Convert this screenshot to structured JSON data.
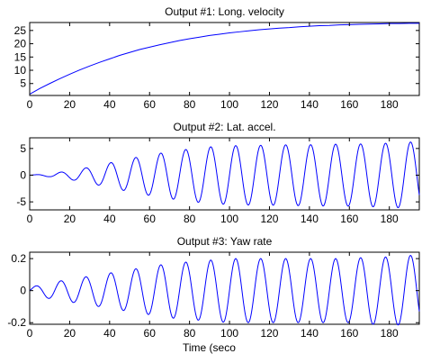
{
  "figure": {
    "xlabel": "Time (seco"
  },
  "chart_data": [
    {
      "type": "line",
      "title": "Output #1: Long. velocity",
      "xlabel": "",
      "ylabel": "",
      "xlim": [
        0,
        195
      ],
      "ylim": [
        0.5,
        28
      ],
      "xticks": [
        0,
        20,
        40,
        60,
        80,
        100,
        120,
        140,
        160,
        180
      ],
      "yticks": [
        5,
        10,
        15,
        20,
        25
      ],
      "color": "#0000ff",
      "grid": false,
      "x": [
        0,
        5,
        10,
        15,
        20,
        25,
        30,
        35,
        40,
        45,
        50,
        55,
        60,
        65,
        70,
        75,
        80,
        85,
        90,
        95,
        100,
        105,
        110,
        115,
        120,
        125,
        130,
        135,
        140,
        145,
        150,
        155,
        160,
        165,
        170,
        175,
        180,
        185,
        190,
        195
      ],
      "y": [
        1.0,
        3.1,
        5.0,
        6.8,
        8.5,
        10.1,
        11.6,
        13.0,
        14.3,
        15.6,
        16.7,
        17.8,
        18.7,
        19.6,
        20.4,
        21.2,
        21.9,
        22.5,
        23.1,
        23.6,
        24.1,
        24.5,
        24.9,
        25.3,
        25.6,
        25.9,
        26.1,
        26.4,
        26.6,
        26.8,
        26.9,
        27.1,
        27.2,
        27.3,
        27.4,
        27.5,
        27.6,
        27.6,
        27.7,
        27.7
      ]
    },
    {
      "type": "line",
      "title": "Output #2: Lat. accel.",
      "xlabel": "",
      "ylabel": "",
      "xlim": [
        0,
        195
      ],
      "ylim": [
        -6.5,
        7
      ],
      "xticks": [
        0,
        20,
        40,
        60,
        80,
        100,
        120,
        140,
        160,
        180
      ],
      "yticks": [
        -5,
        0,
        5
      ],
      "color": "#0000ff",
      "grid": false,
      "oscillation": {
        "period": 12.5,
        "amplitude_start": 0.3,
        "amplitude_end": 6.3,
        "settle_time": 95
      },
      "x": [
        0,
        10,
        20,
        30,
        40,
        50,
        60,
        70,
        80,
        90,
        100,
        110,
        120,
        130,
        140,
        150,
        160,
        170,
        180,
        190,
        195
      ],
      "y": [
        0,
        0.3,
        0.8,
        1.5,
        2.3,
        3.1,
        3.8,
        4.4,
        4.9,
        5.3,
        5.5,
        5.6,
        5.6,
        5.7,
        5.7,
        5.8,
        5.8,
        5.9,
        6.0,
        6.2,
        6.3
      ]
    },
    {
      "type": "line",
      "title": "Output #3: Yaw rate",
      "xlabel": "",
      "ylabel": "",
      "xlim": [
        0,
        195
      ],
      "ylim": [
        -0.21,
        0.24
      ],
      "xticks": [
        0,
        20,
        40,
        60,
        80,
        100,
        120,
        140,
        160,
        180
      ],
      "yticks": [
        -0.2,
        0,
        0.2
      ],
      "ytick_labels": [
        "-0.2",
        "0",
        "0.2"
      ],
      "color": "#0000ff",
      "grid": false,
      "oscillation": {
        "period": 12.5,
        "amplitude_start": 0.03,
        "amplitude_end": 0.22,
        "settle_time": 95
      },
      "x": [
        0,
        10,
        20,
        30,
        40,
        50,
        60,
        70,
        80,
        90,
        100,
        110,
        120,
        130,
        140,
        150,
        160,
        170,
        180,
        190,
        195
      ],
      "y": [
        0.02,
        0.05,
        0.07,
        0.09,
        0.11,
        0.13,
        0.15,
        0.17,
        0.18,
        0.19,
        0.2,
        0.2,
        0.2,
        0.2,
        0.2,
        0.2,
        0.2,
        0.21,
        0.21,
        0.22,
        0.22
      ]
    }
  ]
}
